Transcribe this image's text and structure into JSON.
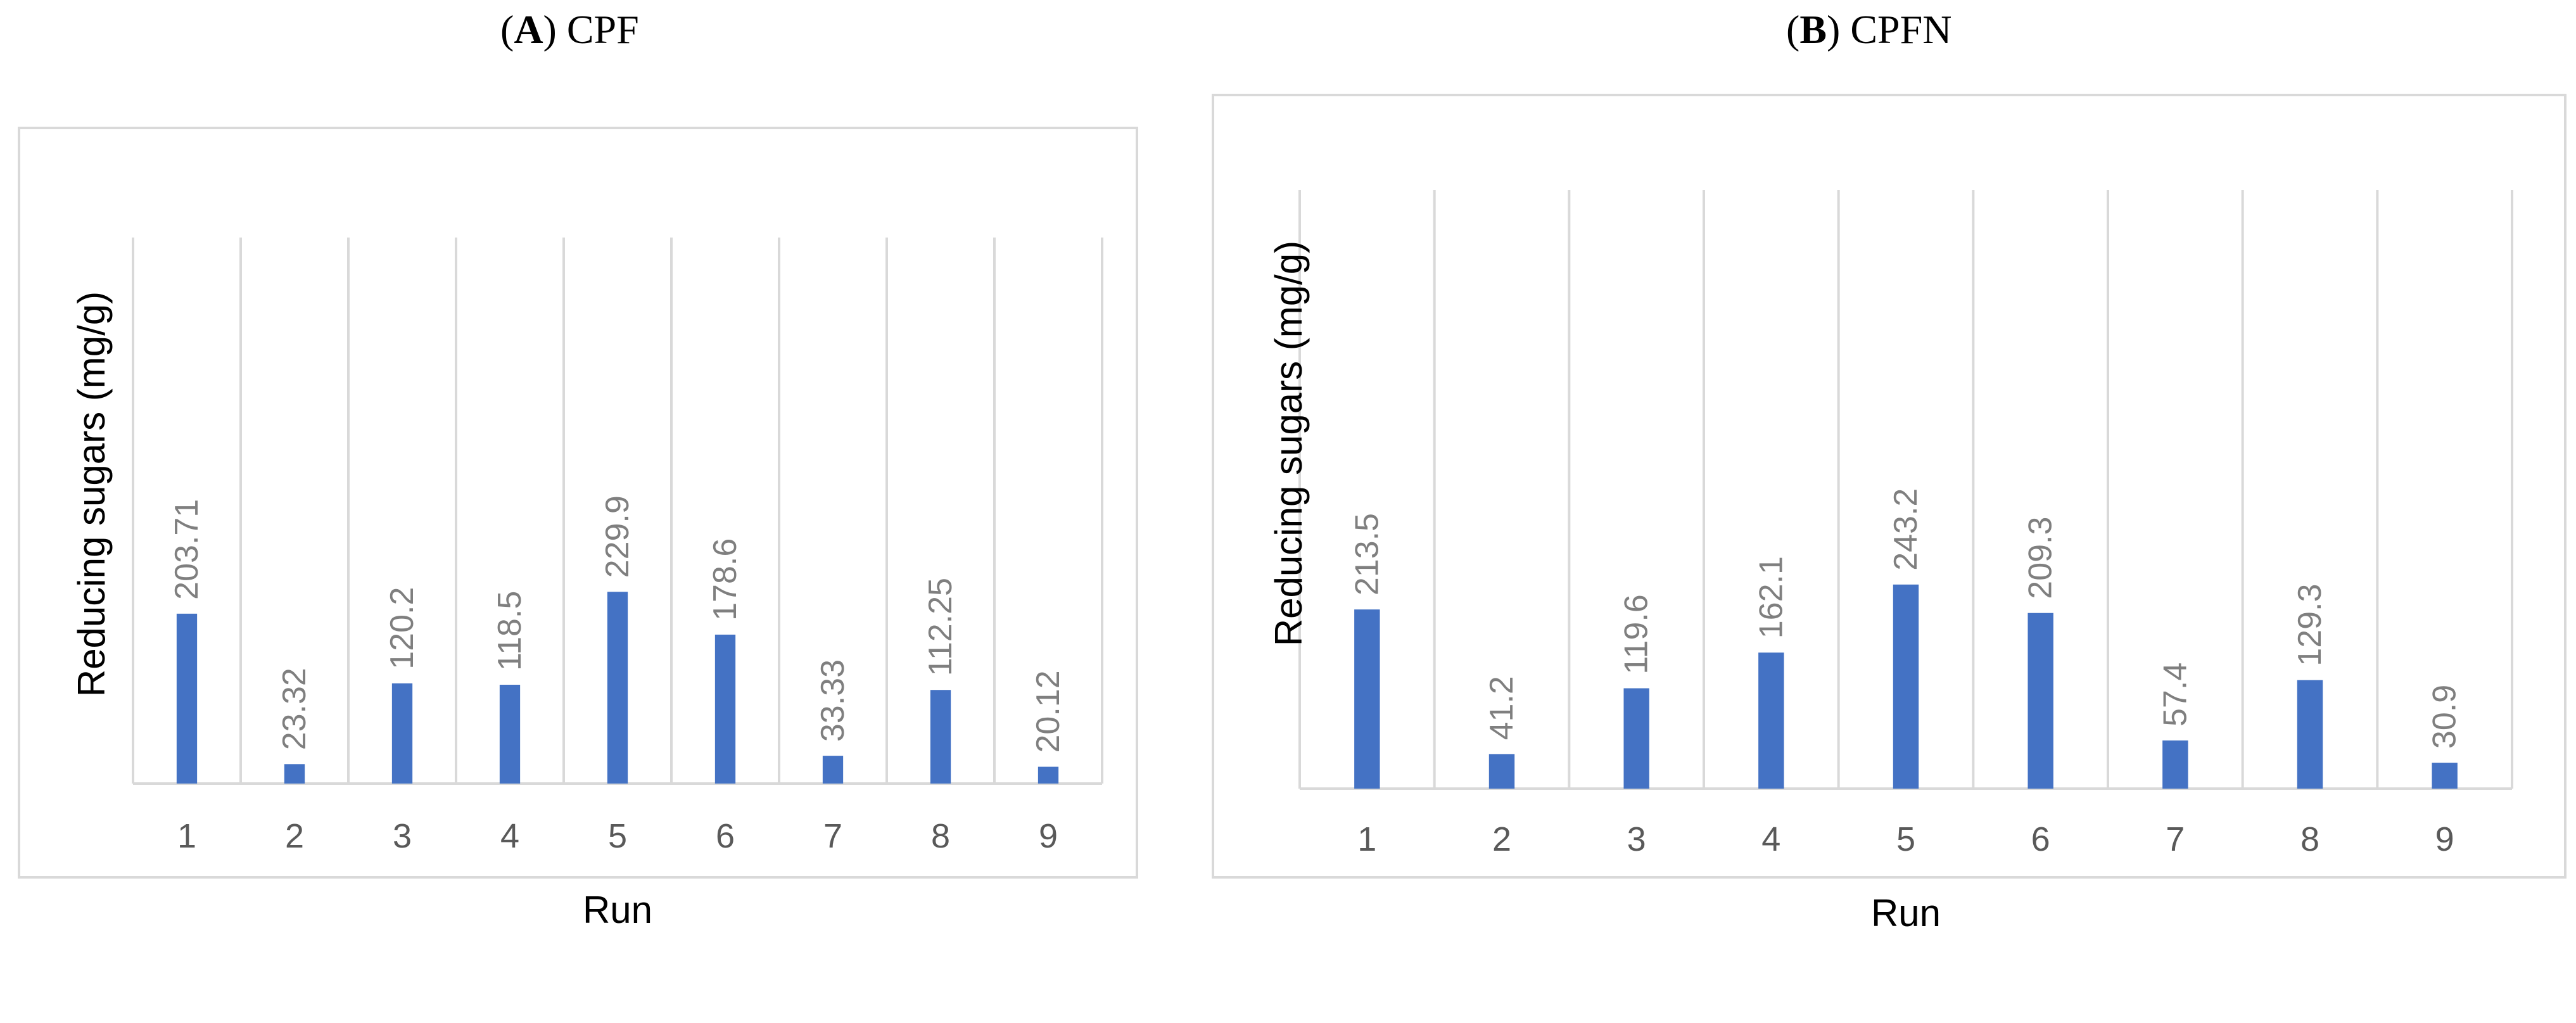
{
  "panels": [
    {
      "letter": "A",
      "name": "CPF"
    },
    {
      "letter": "B",
      "name": "CPFN"
    }
  ],
  "colors": {
    "bar": "#4472C4",
    "grid": "#D9D9D9",
    "axis_text": "#595959",
    "data_label": "#7F7F7F",
    "frame": "#D9D9D9"
  },
  "chart_data": [
    {
      "type": "bar",
      "title": "(A) CPF",
      "xlabel": "Run",
      "ylabel": "Reducing sugars (mg/g)",
      "categories": [
        "1",
        "2",
        "3",
        "4",
        "5",
        "6",
        "7",
        "8",
        "9"
      ],
      "values": [
        203.71,
        23.32,
        120.2,
        118.5,
        229.9,
        178.6,
        33.33,
        112.25,
        20.12
      ],
      "data_labels": [
        "203.71",
        "23.32",
        "120.2",
        "118.5",
        "229.9",
        "178.6",
        "33.33",
        "112.25",
        "20.12"
      ],
      "ylim": [
        0,
        300
      ],
      "grid": "vertical",
      "legend": "none"
    },
    {
      "type": "bar",
      "title": "(B) CPFN",
      "xlabel": "Run",
      "ylabel": "Reducing sugars (mg/g)",
      "categories": [
        "1",
        "2",
        "3",
        "4",
        "5",
        "6",
        "7",
        "8",
        "9"
      ],
      "values": [
        213.5,
        41.2,
        119.6,
        162.1,
        243.2,
        209.3,
        57.4,
        129.3,
        30.9
      ],
      "data_labels": [
        "213.5",
        "41.2",
        "119.6",
        "162.1",
        "243.2",
        "209.3",
        "57.4",
        "129.3",
        "30.9"
      ],
      "ylim": [
        0,
        300
      ],
      "grid": "vertical",
      "legend": "none"
    }
  ]
}
